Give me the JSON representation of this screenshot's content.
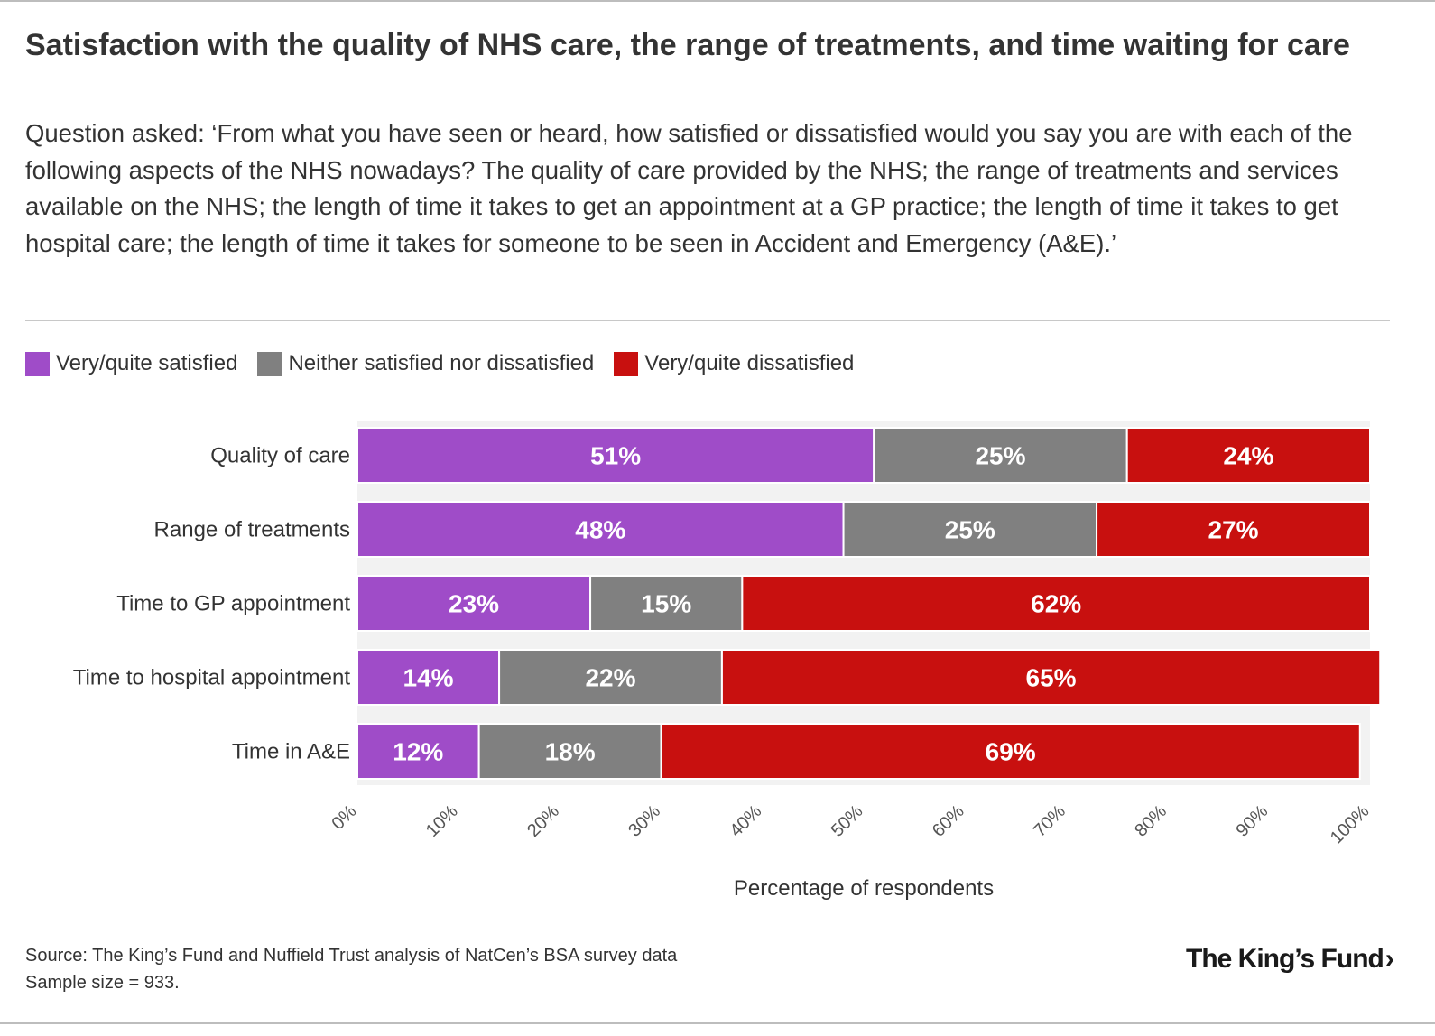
{
  "title": "Satisfaction with the quality of NHS care, the range of treatments, and time waiting for care",
  "subtitle": "Question asked: ‘From what you have seen or heard, how satisfied or dissatisfied would you say you are with each of the following aspects of the NHS nowadays? The quality of care provided by the NHS; the range of treatments and services available on the NHS; the length of time it takes to get an appointment at a GP practice; the length of time it takes to get hospital care; the length of time it takes for someone to be seen in Accident and Emergency (A&E).’",
  "legend": [
    {
      "label": "Very/quite satisfied",
      "color": "#9f4cc8"
    },
    {
      "label": "Neither satisfied nor dissatisfied",
      "color": "#808080"
    },
    {
      "label": "Very/quite dissatisfied",
      "color": "#c8100f"
    }
  ],
  "chart_data": {
    "type": "bar",
    "orientation": "horizontal",
    "stacked": true,
    "categories": [
      "Quality of care",
      "Range of treatments",
      "Time to GP appointment",
      "Time to hospital appointment",
      "Time in A&E"
    ],
    "series": [
      {
        "name": "Very/quite satisfied",
        "color": "#9f4cc8",
        "values": [
          51,
          48,
          23,
          14,
          12
        ],
        "labels": [
          "51%",
          "48%",
          "23%",
          "14%",
          "12%"
        ]
      },
      {
        "name": "Neither satisfied nor dissatisfied",
        "color": "#808080",
        "values": [
          25,
          25,
          15,
          22,
          18
        ],
        "labels": [
          "25%",
          "25%",
          "15%",
          "22%",
          "18%"
        ]
      },
      {
        "name": "Very/quite dissatisfied",
        "color": "#c8100f",
        "values": [
          24,
          27,
          62,
          65,
          69
        ],
        "labels": [
          "24%",
          "27%",
          "62%",
          "65%",
          "69%"
        ]
      }
    ],
    "xlim": [
      0,
      100
    ],
    "xticks": [
      "0%",
      "10%",
      "20%",
      "30%",
      "40%",
      "50%",
      "60%",
      "70%",
      "80%",
      "90%",
      "100%"
    ],
    "xlabel": "Percentage of respondents",
    "ylabel": "",
    "legend_position": "top-left"
  },
  "footer": {
    "source": "Source: The King’s Fund and Nuffield Trust analysis of NatCen’s BSA survey data",
    "sample": "Sample size = 933.",
    "logo": "The King’s Fund",
    "logo_chevron": "›"
  }
}
